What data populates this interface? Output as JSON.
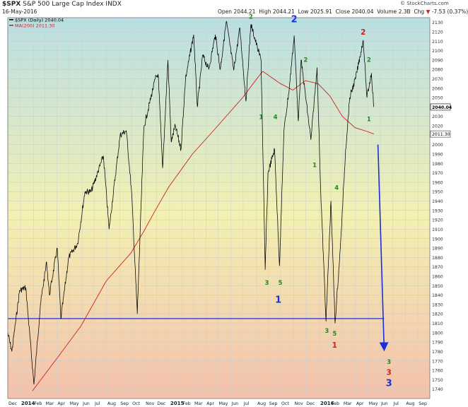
{
  "header": {
    "symbol": "$SPX",
    "name": "S&P 500 Large Cap Index",
    "exchange": "INDX",
    "date": "16-May-2016",
    "open_label": "Open",
    "open": "2044.21",
    "high_label": "High",
    "high": "2044.21",
    "low_label": "Low",
    "low": "2025.91",
    "close_label": "Close",
    "close": "2040.04",
    "volume_label": "Volume",
    "volume": "2.3B",
    "chg_label": "Chg",
    "chg": "-7.53 (0.37%)",
    "chg_arrow": "▼",
    "brand": "© StockCharts.com"
  },
  "legend": {
    "price": "$SPX (Daily) 2040.04",
    "ma": "MA(200) 2011.30"
  },
  "colors": {
    "price": "#000000",
    "ma": "#cc2222",
    "blue": "#1a2fd8",
    "green": "#1e8a1e",
    "red": "#d81c1c",
    "bg_top": "#b9dfe4",
    "bg_mid": "#f3f0b2",
    "bg_bottom": "#f3c1ac"
  },
  "chart_data": {
    "type": "line",
    "ylim": [
      1730,
      2135
    ],
    "y_ticks": [
      1740,
      1750,
      1760,
      1770,
      1780,
      1790,
      1800,
      1810,
      1820,
      1830,
      1840,
      1850,
      1860,
      1870,
      1880,
      1890,
      1900,
      1910,
      1920,
      1930,
      1940,
      1950,
      1960,
      1970,
      1980,
      1990,
      2000,
      2010,
      2020,
      2030,
      2040,
      2050,
      2060,
      2070,
      2080,
      2090,
      2100,
      2110,
      2120,
      2130
    ],
    "x_start": "2013-12-02",
    "x_end": "2016-09-30",
    "x_ticks": [
      {
        "label": "Dec",
        "date": "2013-12-02",
        "bold": false
      },
      {
        "label": "2014",
        "date": "2014-01-02",
        "bold": true
      },
      {
        "label": "Feb",
        "date": "2014-02-03",
        "bold": false
      },
      {
        "label": "Mar",
        "date": "2014-03-03",
        "bold": false
      },
      {
        "label": "Apr",
        "date": "2014-04-01",
        "bold": false
      },
      {
        "label": "May",
        "date": "2014-05-01",
        "bold": false
      },
      {
        "label": "Jun",
        "date": "2014-06-02",
        "bold": false
      },
      {
        "label": "Jul",
        "date": "2014-07-01",
        "bold": false
      },
      {
        "label": "Aug",
        "date": "2014-08-01",
        "bold": false
      },
      {
        "label": "Sep",
        "date": "2014-09-02",
        "bold": false
      },
      {
        "label": "Oct",
        "date": "2014-10-01",
        "bold": false
      },
      {
        "label": "Nov",
        "date": "2014-11-03",
        "bold": false
      },
      {
        "label": "Dec",
        "date": "2014-12-01",
        "bold": false
      },
      {
        "label": "2015",
        "date": "2015-01-02",
        "bold": true
      },
      {
        "label": "Feb",
        "date": "2015-02-02",
        "bold": false
      },
      {
        "label": "Mar",
        "date": "2015-03-02",
        "bold": false
      },
      {
        "label": "Apr",
        "date": "2015-04-01",
        "bold": false
      },
      {
        "label": "May",
        "date": "2015-05-01",
        "bold": false
      },
      {
        "label": "Jun",
        "date": "2015-06-01",
        "bold": false
      },
      {
        "label": "Jul",
        "date": "2015-07-01",
        "bold": false
      },
      {
        "label": "Aug",
        "date": "2015-08-03",
        "bold": false
      },
      {
        "label": "Sep",
        "date": "2015-09-01",
        "bold": false
      },
      {
        "label": "Oct",
        "date": "2015-10-01",
        "bold": false
      },
      {
        "label": "Nov",
        "date": "2015-11-02",
        "bold": false
      },
      {
        "label": "Dec",
        "date": "2015-12-01",
        "bold": false
      },
      {
        "label": "2016",
        "date": "2016-01-04",
        "bold": true
      },
      {
        "label": "Feb",
        "date": "2016-02-01",
        "bold": false
      },
      {
        "label": "Mar",
        "date": "2016-03-01",
        "bold": false
      },
      {
        "label": "Apr",
        "date": "2016-04-01",
        "bold": false
      },
      {
        "label": "May",
        "date": "2016-05-02",
        "bold": false
      },
      {
        "label": "Jun",
        "date": "2016-06-01",
        "bold": false
      },
      {
        "label": "Jul",
        "date": "2016-07-01",
        "bold": false
      },
      {
        "label": "Aug",
        "date": "2016-08-01",
        "bold": false
      },
      {
        "label": "Sep",
        "date": "2016-09-01",
        "bold": false
      }
    ],
    "series": [
      {
        "name": "$SPX (Daily)",
        "points": [
          [
            "2013-12-02",
            1800
          ],
          [
            "2013-12-12",
            1780
          ],
          [
            "2013-12-31",
            1845
          ],
          [
            "2014-01-15",
            1848
          ],
          [
            "2014-02-04",
            1745
          ],
          [
            "2014-02-20",
            1830
          ],
          [
            "2014-03-07",
            1875
          ],
          [
            "2014-03-14",
            1840
          ],
          [
            "2014-04-02",
            1890
          ],
          [
            "2014-04-11",
            1815
          ],
          [
            "2014-04-30",
            1880
          ],
          [
            "2014-05-22",
            1895
          ],
          [
            "2014-06-09",
            1950
          ],
          [
            "2014-06-24",
            1950
          ],
          [
            "2014-07-24",
            1988
          ],
          [
            "2014-08-07",
            1910
          ],
          [
            "2014-09-03",
            2010
          ],
          [
            "2014-09-18",
            2015
          ],
          [
            "2014-10-01",
            1950
          ],
          [
            "2014-10-15",
            1820
          ],
          [
            "2014-10-31",
            2018
          ],
          [
            "2014-11-28",
            2070
          ],
          [
            "2014-12-05",
            2075
          ],
          [
            "2014-12-16",
            1975
          ],
          [
            "2014-12-29",
            2090
          ],
          [
            "2015-01-06",
            2003
          ],
          [
            "2015-01-16",
            2020
          ],
          [
            "2015-01-30",
            1995
          ],
          [
            "2015-02-10",
            2070
          ],
          [
            "2015-03-02",
            2117
          ],
          [
            "2015-03-11",
            2040
          ],
          [
            "2015-03-24",
            2095
          ],
          [
            "2015-04-08",
            2080
          ],
          [
            "2015-04-24",
            2117
          ],
          [
            "2015-05-06",
            2080
          ],
          [
            "2015-05-21",
            2131
          ],
          [
            "2015-06-08",
            2079
          ],
          [
            "2015-06-23",
            2124
          ],
          [
            "2015-07-08",
            2046
          ],
          [
            "2015-07-20",
            2128
          ],
          [
            "2015-08-05",
            2103
          ],
          [
            "2015-08-14",
            2090
          ],
          [
            "2015-08-24",
            1867
          ],
          [
            "2015-08-31",
            1970
          ],
          [
            "2015-09-16",
            1995
          ],
          [
            "2015-09-28",
            1871
          ],
          [
            "2015-10-09",
            2015
          ],
          [
            "2015-10-22",
            2060
          ],
          [
            "2015-11-03",
            2116
          ],
          [
            "2015-11-13",
            2025
          ],
          [
            "2015-11-20",
            2090
          ],
          [
            "2015-12-14",
            2005
          ],
          [
            "2015-12-29",
            2082
          ],
          [
            "2016-01-07",
            1950
          ],
          [
            "2016-01-20",
            1812
          ],
          [
            "2016-02-01",
            1940
          ],
          [
            "2016-02-11",
            1810
          ],
          [
            "2016-02-24",
            1890
          ],
          [
            "2016-03-08",
            1995
          ],
          [
            "2016-03-18",
            2050
          ],
          [
            "2016-04-01",
            2070
          ],
          [
            "2016-04-20",
            2111
          ],
          [
            "2016-04-29",
            2050
          ],
          [
            "2016-05-10",
            2076
          ],
          [
            "2016-05-16",
            2040
          ]
        ]
      },
      {
        "name": "MA(200)",
        "points": [
          [
            "2014-01-31",
            1738
          ],
          [
            "2014-03-31",
            1772
          ],
          [
            "2014-05-30",
            1807
          ],
          [
            "2014-07-31",
            1855
          ],
          [
            "2014-09-30",
            1885
          ],
          [
            "2014-10-31",
            1908
          ],
          [
            "2014-11-28",
            1930
          ],
          [
            "2014-12-31",
            1955
          ],
          [
            "2015-02-27",
            1990
          ],
          [
            "2015-04-30",
            2020
          ],
          [
            "2015-06-30",
            2050
          ],
          [
            "2015-07-31",
            2068
          ],
          [
            "2015-08-18",
            2078
          ],
          [
            "2015-09-30",
            2065
          ],
          [
            "2015-10-31",
            2058
          ],
          [
            "2015-11-30",
            2068
          ],
          [
            "2015-12-31",
            2065
          ],
          [
            "2016-01-29",
            2052
          ],
          [
            "2016-02-29",
            2030
          ],
          [
            "2016-03-31",
            2018
          ],
          [
            "2016-04-29",
            2014
          ],
          [
            "2016-05-16",
            2011.3
          ]
        ]
      }
    ],
    "support_line": {
      "y": 1815,
      "x_from": "2013-12-02",
      "x_to": "2016-06-10"
    },
    "arrow": {
      "from": [
        "2016-05-26",
        2000
      ],
      "to": [
        "2016-06-10",
        1785
      ]
    },
    "price_marker": "2040.04",
    "ma_marker": "2011.30",
    "annotations": [
      {
        "text": "2",
        "date": "2015-07-20",
        "y": 2134,
        "color": "green",
        "size": "small"
      },
      {
        "text": "2",
        "date": "2015-11-03",
        "y": 2130,
        "color": "blue",
        "size": "large"
      },
      {
        "text": "2",
        "date": "2016-04-20",
        "y": 2117,
        "color": "red",
        "size": "medium"
      },
      {
        "text": "2",
        "date": "2015-12-01",
        "y": 2088,
        "color": "green",
        "size": "small"
      },
      {
        "text": "2",
        "date": "2016-05-04",
        "y": 2088,
        "color": "green",
        "size": "small"
      },
      {
        "text": "1",
        "date": "2015-08-14",
        "y": 2027,
        "color": "green",
        "size": "small"
      },
      {
        "text": "4",
        "date": "2015-09-18",
        "y": 2027,
        "color": "green",
        "size": "small"
      },
      {
        "text": "1",
        "date": "2016-05-04",
        "y": 2025,
        "color": "green",
        "size": "small"
      },
      {
        "text": "1",
        "date": "2015-12-23",
        "y": 1976,
        "color": "green",
        "size": "small"
      },
      {
        "text": "4",
        "date": "2016-02-15",
        "y": 1952,
        "color": "green",
        "size": "small"
      },
      {
        "text": "3",
        "date": "2015-08-28",
        "y": 1851,
        "color": "green",
        "size": "small"
      },
      {
        "text": "5",
        "date": "2015-09-30",
        "y": 1851,
        "color": "green",
        "size": "small"
      },
      {
        "text": "1",
        "date": "2015-09-25",
        "y": 1832,
        "color": "blue",
        "size": "large"
      },
      {
        "text": "3",
        "date": "2016-01-22",
        "y": 1800,
        "color": "green",
        "size": "small"
      },
      {
        "text": "5",
        "date": "2016-02-10",
        "y": 1797,
        "color": "green",
        "size": "small"
      },
      {
        "text": "1",
        "date": "2016-02-10",
        "y": 1784,
        "color": "red",
        "size": "medium"
      },
      {
        "text": "3",
        "date": "2016-06-22",
        "y": 1767,
        "color": "green",
        "size": "small"
      },
      {
        "text": "3",
        "date": "2016-06-22",
        "y": 1755,
        "color": "red",
        "size": "medium"
      },
      {
        "text": "3",
        "date": "2016-06-22",
        "y": 1743,
        "color": "blue",
        "size": "large"
      }
    ]
  }
}
